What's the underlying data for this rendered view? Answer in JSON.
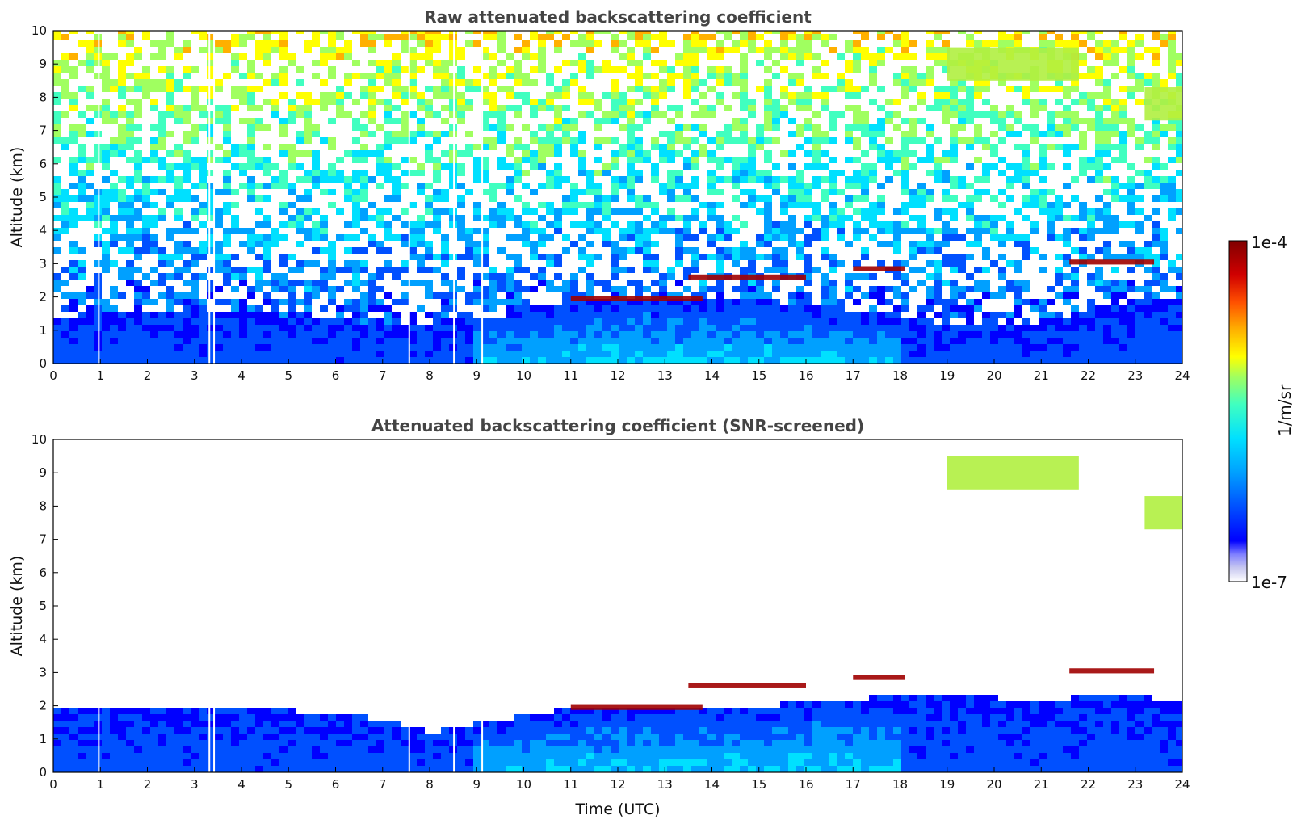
{
  "chart_data": [
    {
      "type": "heatmap",
      "title": "Raw attenuated backscattering coefficient",
      "xlabel": "",
      "ylabel": "Altitude (km)",
      "xlim": [
        0,
        24
      ],
      "ylim": [
        0,
        10
      ],
      "x_ticks": [
        "0",
        "1",
        "2",
        "3",
        "4",
        "5",
        "6",
        "7",
        "8",
        "9",
        "10",
        "11",
        "12",
        "13",
        "14",
        "15",
        "16",
        "17",
        "18",
        "19",
        "20",
        "21",
        "22",
        "23",
        "24"
      ],
      "y_ticks": [
        "0",
        "1",
        "2",
        "3",
        "4",
        "5",
        "6",
        "7",
        "8",
        "9",
        "10"
      ],
      "boundary_layer_top_km": [
        [
          0,
          1.4
        ],
        [
          2,
          1.6
        ],
        [
          4,
          1.5
        ],
        [
          6,
          1.3
        ],
        [
          7,
          1.2
        ],
        [
          8,
          1.1
        ],
        [
          9,
          1.4
        ],
        [
          10,
          1.5
        ],
        [
          11,
          1.9
        ],
        [
          13,
          2.0
        ],
        [
          15,
          1.9
        ],
        [
          17,
          1.6
        ],
        [
          19,
          1.2
        ],
        [
          21,
          1.2
        ],
        [
          22,
          1.6
        ],
        [
          23,
          1.9
        ],
        [
          24,
          1.9
        ]
      ],
      "cloud_layers": [
        {
          "t_start": 11.0,
          "t_end": 13.8,
          "alt_km": 1.95
        },
        {
          "t_start": 13.5,
          "t_end": 16.0,
          "alt_km": 2.6
        },
        {
          "t_start": 17.0,
          "t_end": 18.1,
          "alt_km": 2.85
        },
        {
          "t_start": 21.6,
          "t_end": 23.4,
          "alt_km": 3.05
        },
        {
          "t_start": 19.0,
          "t_end": 21.8,
          "alt_km": 9.0
        },
        {
          "t_start": 23.2,
          "t_end": 24.0,
          "alt_km": 7.8
        }
      ],
      "data_gaps_utc": [
        0.95,
        3.3,
        3.4,
        7.55,
        8.5,
        9.1
      ]
    },
    {
      "type": "heatmap",
      "title": "Attenuated backscattering coefficient (SNR-screened)",
      "xlabel": "Time (UTC)",
      "ylabel": "Altitude (km)",
      "xlim": [
        0,
        24
      ],
      "ylim": [
        0,
        10
      ],
      "x_ticks": [
        "0",
        "1",
        "2",
        "3",
        "4",
        "5",
        "6",
        "7",
        "8",
        "9",
        "10",
        "11",
        "12",
        "13",
        "14",
        "15",
        "16",
        "17",
        "18",
        "19",
        "20",
        "21",
        "22",
        "23",
        "24"
      ],
      "y_ticks": [
        "0",
        "1",
        "2",
        "3",
        "4",
        "5",
        "6",
        "7",
        "8",
        "9",
        "10"
      ],
      "screened_top_km": [
        [
          0,
          1.95
        ],
        [
          2,
          1.95
        ],
        [
          4,
          1.9
        ],
        [
          6,
          1.8
        ],
        [
          7,
          1.6
        ],
        [
          8,
          1.2
        ],
        [
          9,
          1.5
        ],
        [
          10,
          1.7
        ],
        [
          11,
          1.9
        ],
        [
          13,
          2.0
        ],
        [
          15,
          2.0
        ],
        [
          17,
          2.2
        ],
        [
          19,
          2.4
        ],
        [
          21,
          2.1
        ],
        [
          22,
          2.3
        ],
        [
          24,
          2.2
        ]
      ]
    }
  ],
  "colorbar": {
    "label": "1/m/sr",
    "max_label": "1e-4",
    "min_label": "1e-7",
    "scale": "log",
    "range": [
      1e-07,
      0.0001
    ],
    "colors": [
      "#ffffff",
      "#c8c8f0",
      "#8080ff",
      "#0000ff",
      "#0050ff",
      "#00a0ff",
      "#00e0ff",
      "#40ffc0",
      "#a0ff60",
      "#ffff00",
      "#ffb000",
      "#ff5000",
      "#d00000",
      "#800000"
    ]
  }
}
